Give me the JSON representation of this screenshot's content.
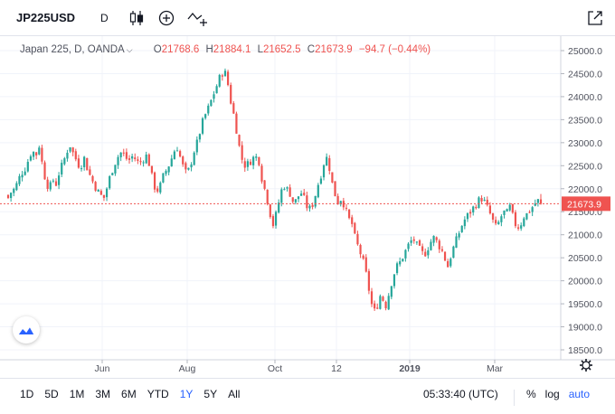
{
  "toolbar": {
    "symbol": "JP225USD",
    "interval": "D",
    "icons": [
      "candles-icon",
      "add-compare-icon",
      "indicators-icon",
      "fullscreen-icon"
    ]
  },
  "legend": {
    "title": "Japan 225, D, OANDA",
    "open_label": "O",
    "open": "21768.6",
    "high_label": "H",
    "high": "21884.1",
    "low_label": "L",
    "low": "21652.5",
    "close_label": "C",
    "close": "21673.9",
    "change": "−94.7 (−0.44%)"
  },
  "colors": {
    "up": "#26a69a",
    "down": "#ef5350",
    "accent": "#2962ff",
    "price_line": "#ef5350"
  },
  "price_scale": {
    "labels": [
      "25000.0",
      "24500.0",
      "24000.0",
      "23500.0",
      "23000.0",
      "22500.0",
      "22000.0",
      "21500.0",
      "21000.0",
      "20500.0",
      "20000.0",
      "19500.0",
      "19000.0",
      "18500.0"
    ],
    "current_price": "21673.9"
  },
  "time_scale": {
    "labels": [
      "Jun",
      "Aug",
      "Oct",
      "12",
      "2019",
      "Mar"
    ]
  },
  "chart_data": {
    "type": "candlestick",
    "symbol": "JP225USD",
    "ylim": [
      18500,
      25000
    ],
    "close_path": [
      21800,
      21950,
      22000,
      22200,
      22350,
      22450,
      22650,
      22850,
      22700,
      22950,
      22500,
      22150,
      22000,
      22200,
      22100,
      22400,
      22550,
      22800,
      22950,
      22750,
      22600,
      22450,
      22700,
      22450,
      22250,
      22100,
      21950,
      21850,
      21800,
      22100,
      22350,
      22550,
      22700,
      22800,
      22700,
      22600,
      22700,
      22650,
      22550,
      22600,
      22750,
      22550,
      22200,
      21950,
      22000,
      22250,
      22400,
      22550,
      22750,
      22950,
      22700,
      22450,
      22300,
      22500,
      22800,
      23000,
      23300,
      23550,
      23700,
      23900,
      24100,
      24300,
      24500,
      24550,
      24250,
      23800,
      23500,
      23000,
      22650,
      22500,
      22550,
      22650,
      22700,
      22600,
      22150,
      21900,
      21550,
      21200,
      21450,
      21800,
      22100,
      22000,
      21900,
      21700,
      21750,
      21950,
      21800,
      21600,
      21550,
      21750,
      22050,
      22300,
      22600,
      22700,
      22200,
      21900,
      21700,
      21800,
      21600,
      21350,
      21250,
      20900,
      20700,
      20500,
      20200,
      19800,
      19400,
      19300,
      19700,
      19600,
      19450,
      19800,
      20100,
      20300,
      20400,
      20550,
      20700,
      20850,
      20900,
      20750,
      20650,
      20550,
      20700,
      20850,
      20950,
      20800,
      20700,
      20500,
      20300,
      20600,
      20800,
      21000,
      21200,
      21350,
      21450,
      21550,
      21650,
      21750,
      21800,
      21650,
      21500,
      21300,
      21150,
      21300,
      21500,
      21450,
      21600,
      21350,
      21150,
      21200,
      21400,
      21450,
      21550,
      21650,
      21750,
      21674
    ]
  },
  "bottom_bar": {
    "ranges": [
      "1D",
      "5D",
      "1M",
      "3M",
      "6M",
      "YTD",
      "1Y",
      "5Y",
      "All"
    ],
    "active_range": "1Y",
    "clock": "05:33:40 (UTC)",
    "percent": "%",
    "log": "log",
    "auto": "auto"
  }
}
